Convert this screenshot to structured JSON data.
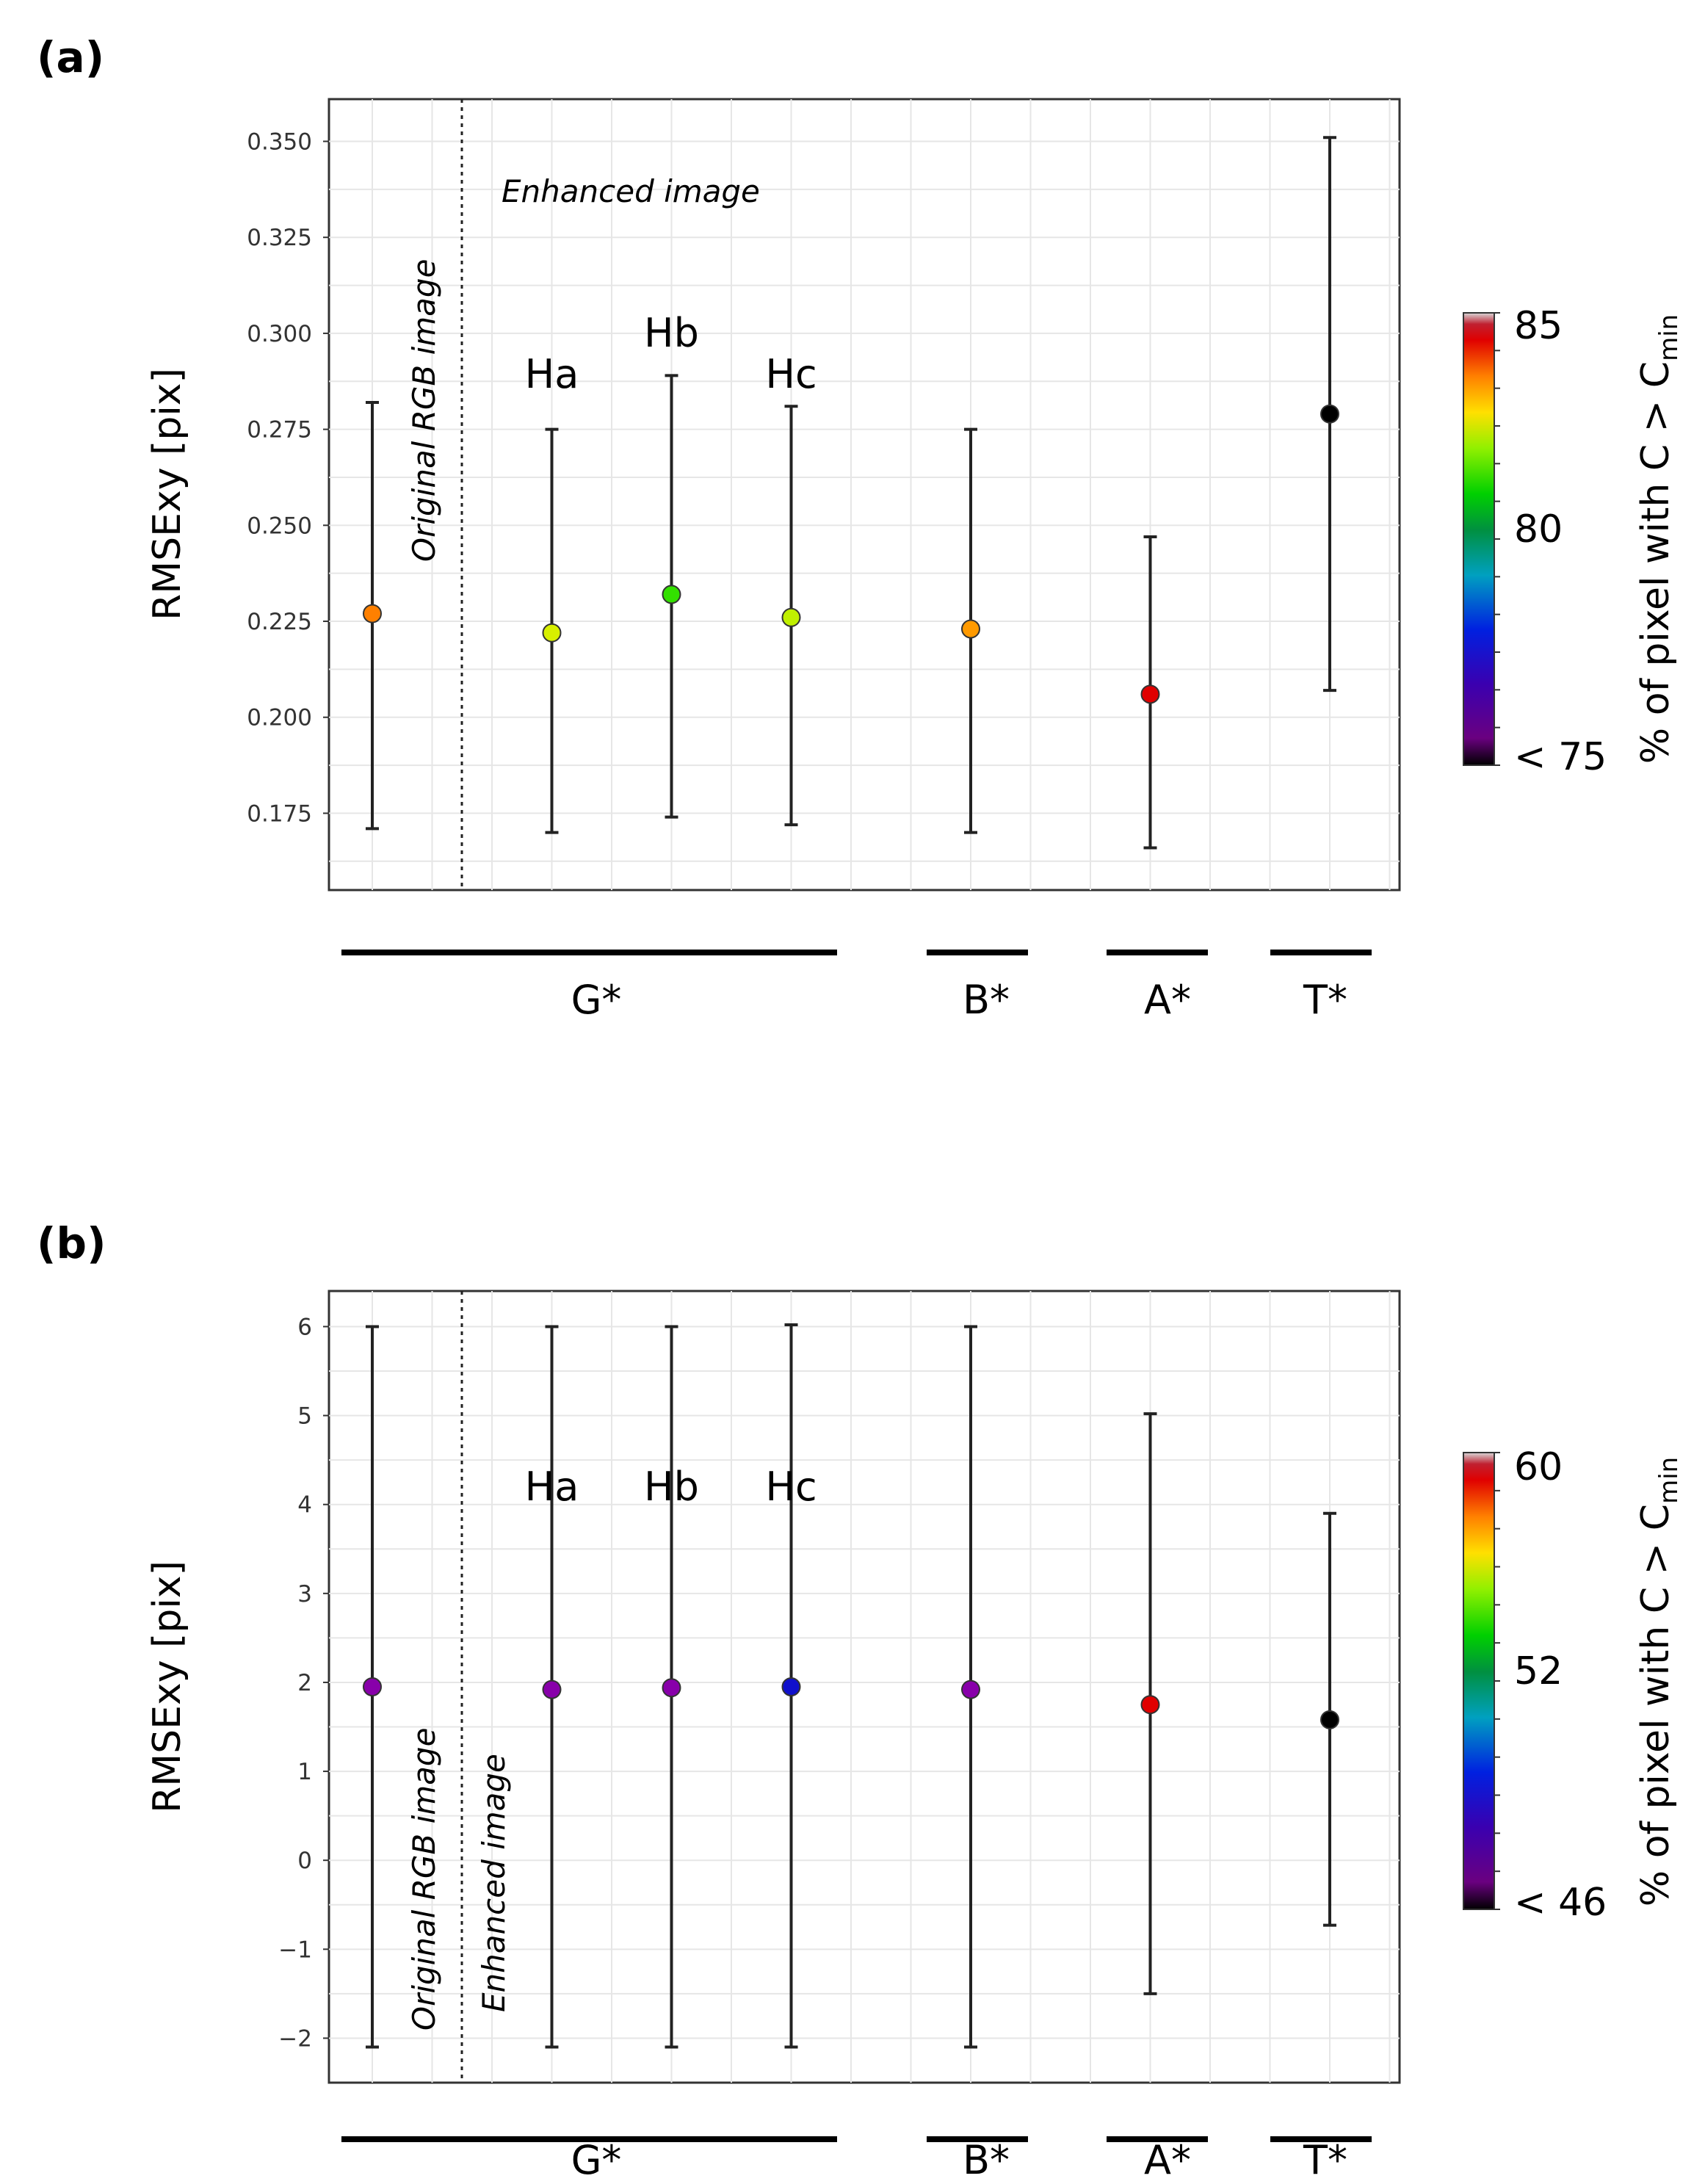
{
  "chart_data": [
    {
      "panel_label": "(a)",
      "type": "scatter",
      "error_bars": true,
      "ylabel": "RMSExy [pix]",
      "ylim": [
        0.155,
        0.361
      ],
      "yticks": [
        0.175,
        0.2,
        0.225,
        0.25,
        0.275,
        0.3,
        0.325,
        0.35
      ],
      "ytick_labels": [
        "0.175",
        "0.200",
        "0.225",
        "0.250",
        "0.275",
        "0.300",
        "0.325",
        "0.350"
      ],
      "grid": true,
      "annotations": {
        "original": "Original RGB image",
        "enhanced": "Enhanced image"
      },
      "points": [
        {
          "name": "Original",
          "x": 0,
          "y": 0.227,
          "ymin": 0.171,
          "ymax": 0.282,
          "color": "#ff8000",
          "label": ""
        },
        {
          "name": "Ha",
          "x": 1.5,
          "y": 0.222,
          "ymin": 0.17,
          "ymax": 0.275,
          "color": "#d8f000",
          "label": "Ha"
        },
        {
          "name": "Hb",
          "x": 2.5,
          "y": 0.232,
          "ymin": 0.174,
          "ymax": 0.289,
          "color": "#33e000",
          "label": "Hb"
        },
        {
          "name": "Hc",
          "x": 3.5,
          "y": 0.226,
          "ymin": 0.172,
          "ymax": 0.281,
          "color": "#c0f000",
          "label": "Hc"
        },
        {
          "name": "B",
          "x": 5,
          "y": 0.223,
          "ymin": 0.17,
          "ymax": 0.275,
          "color": "#ff9a00",
          "label": ""
        },
        {
          "name": "A",
          "x": 6.5,
          "y": 0.206,
          "ymin": 0.166,
          "ymax": 0.247,
          "color": "#e00000",
          "label": ""
        },
        {
          "name": "T",
          "x": 8,
          "y": 0.279,
          "ymin": 0.207,
          "ymax": 0.351,
          "color": "#000000",
          "label": ""
        }
      ],
      "groups": [
        "G*",
        "B*",
        "A*",
        "T*"
      ],
      "colorbar": {
        "ticks": [
          "85",
          "80",
          "< 75"
        ],
        "tick_values": [
          85,
          80,
          75
        ],
        "range": [
          75,
          85.1
        ],
        "label": "% of pixel with C > C",
        "label_sub": "min"
      }
    },
    {
      "panel_label": "(b)",
      "type": "scatter",
      "error_bars": true,
      "ylabel": "RMSExy [pix]",
      "ylim": [
        -2.5,
        6.4
      ],
      "yticks": [
        -2,
        -1,
        0,
        1,
        2,
        3,
        4,
        5,
        6
      ],
      "ytick_labels": [
        "−2",
        "−1",
        "0",
        "1",
        "2",
        "3",
        "4",
        "5",
        "6"
      ],
      "grid": true,
      "annotations": {
        "original": "Original RGB image",
        "enhanced": "Enhanced image"
      },
      "points": [
        {
          "name": "Original",
          "x": 0,
          "y": 1.95,
          "ymin": -2.1,
          "ymax": 6.0,
          "color": "#8800aa",
          "label": ""
        },
        {
          "name": "Ha",
          "x": 1.5,
          "y": 1.92,
          "ymin": -2.1,
          "ymax": 6.0,
          "color": "#8800aa",
          "label": "Ha"
        },
        {
          "name": "Hb",
          "x": 2.5,
          "y": 1.94,
          "ymin": -2.1,
          "ymax": 6.0,
          "color": "#8800aa",
          "label": "Hb"
        },
        {
          "name": "Hc",
          "x": 3.5,
          "y": 1.95,
          "ymin": -2.1,
          "ymax": 6.02,
          "color": "#1010cc",
          "label": "Hc"
        },
        {
          "name": "B",
          "x": 5,
          "y": 1.92,
          "ymin": -2.1,
          "ymax": 6.0,
          "color": "#8800aa",
          "label": ""
        },
        {
          "name": "A",
          "x": 6.5,
          "y": 1.75,
          "ymin": -1.5,
          "ymax": 5.02,
          "color": "#e00000",
          "label": ""
        },
        {
          "name": "T",
          "x": 8,
          "y": 1.58,
          "ymin": -0.73,
          "ymax": 3.9,
          "color": "#000000",
          "label": ""
        }
      ],
      "groups": [
        "G*",
        "B*",
        "A*",
        "T*"
      ],
      "colorbar": {
        "ticks": [
          "60",
          "52",
          "< 46"
        ],
        "tick_values": [
          60,
          52,
          46
        ],
        "range": [
          46,
          60.2
        ],
        "label": "% of pixel with C > C",
        "label_sub": "min"
      }
    }
  ]
}
